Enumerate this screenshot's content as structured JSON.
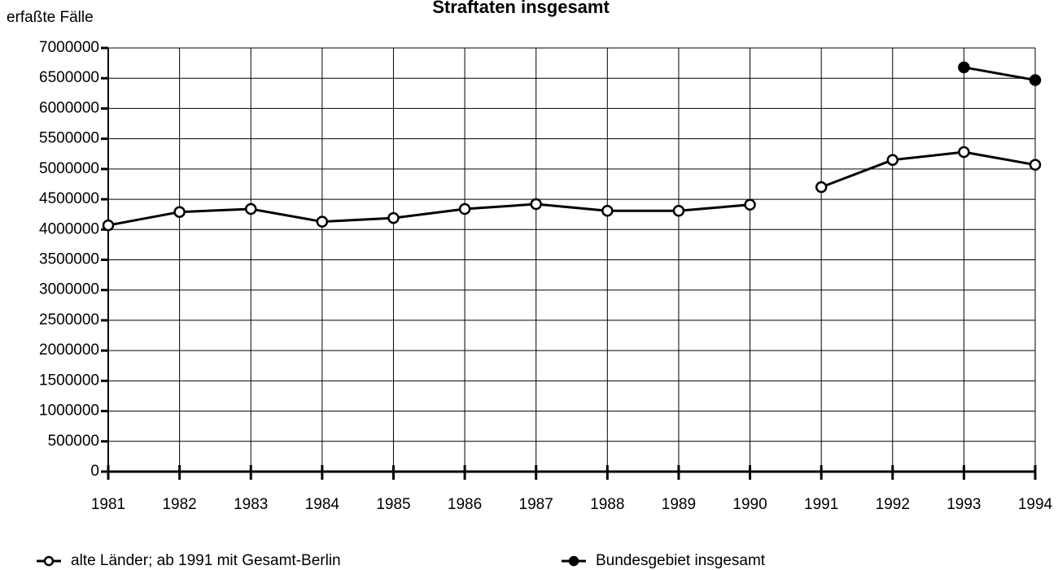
{
  "chart_data": {
    "type": "line",
    "title": "Straftaten insgesamt",
    "y_label": "erfaßte Fälle",
    "x": [
      1981,
      1982,
      1983,
      1984,
      1985,
      1986,
      1987,
      1988,
      1989,
      1990,
      null,
      1991,
      1992,
      1993,
      1994
    ],
    "series": [
      {
        "name": "alte Länder; ab 1991 mit Gesamt-Berlin",
        "color": "#000000",
        "marker": "open",
        "values": [
          4070000,
          4290000,
          4340000,
          4130000,
          4190000,
          4340000,
          4420000,
          4310000,
          4310000,
          4410000,
          null,
          4700000,
          5150000,
          5280000,
          5070000
        ]
      },
      {
        "name": "Bundesgebiet insgesamt",
        "color": "#000000",
        "marker": "filled",
        "values": [
          null,
          null,
          null,
          null,
          null,
          null,
          null,
          null,
          null,
          null,
          null,
          null,
          null,
          6680000,
          6470000
        ]
      }
    ],
    "xlim": [
      1981,
      1994
    ],
    "xticks": [
      1981,
      1982,
      1983,
      1984,
      1985,
      1986,
      1987,
      1988,
      1989,
      1990,
      1991,
      1992,
      1993,
      1994
    ],
    "ylim": [
      0,
      7000000
    ],
    "yticks": [
      0,
      500000,
      1000000,
      1500000,
      2000000,
      2500000,
      3000000,
      3500000,
      4000000,
      4500000,
      5000000,
      5500000,
      6000000,
      6500000,
      7000000
    ],
    "grid": true
  }
}
